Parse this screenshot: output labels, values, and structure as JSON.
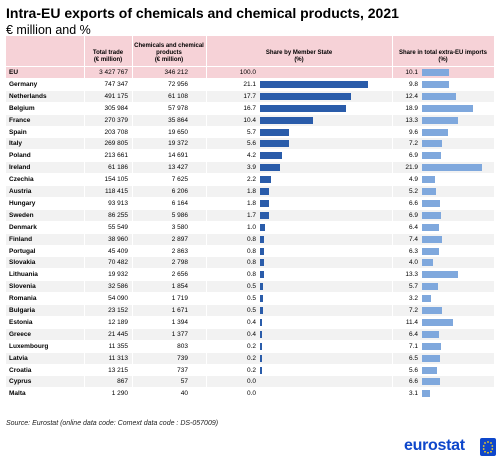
{
  "title": "Intra-EU exports of chemicals and chemical products, 2021",
  "subtitle": "€ million and %",
  "source": "Source: Eurostat (online data code: Comext data code : DS-057009)",
  "logo_text": "eurostat",
  "colors": {
    "header_bg": "#f6d2d7",
    "bar_dark": "#2a5caa",
    "bar_light": "#7fa8dd",
    "row_alt": "#f2f2f2",
    "logo_blue": "#0e47cb"
  },
  "chart_data": {
    "type": "table",
    "columns": [
      "Total trade\n(€ million)",
      "Chemicals and chemical\nproducts\n(€ million)",
      "Share by Member State\n(%)",
      "Share in total extra-EU imports\n(%)"
    ],
    "share_axis_max": 25,
    "rows": [
      {
        "name": "EU",
        "total": "3 427 767",
        "chem": "346 212",
        "share": 100.0,
        "share_label": "100.0",
        "extra": 10.1,
        "extra_label": "10.1"
      },
      {
        "name": "Germany",
        "total": "747 347",
        "chem": "72 956",
        "share": 21.1,
        "share_label": "21.1",
        "extra": 9.8,
        "extra_label": "9.8"
      },
      {
        "name": "Netherlands",
        "total": "491 175",
        "chem": "61 108",
        "share": 17.7,
        "share_label": "17.7",
        "extra": 12.4,
        "extra_label": "12.4"
      },
      {
        "name": "Belgium",
        "total": "305 984",
        "chem": "57 978",
        "share": 16.7,
        "share_label": "16.7",
        "extra": 18.9,
        "extra_label": "18.9"
      },
      {
        "name": "France",
        "total": "270 379",
        "chem": "35 864",
        "share": 10.4,
        "share_label": "10.4",
        "extra": 13.3,
        "extra_label": "13.3"
      },
      {
        "name": "Spain",
        "total": "203 708",
        "chem": "19 650",
        "share": 5.7,
        "share_label": "5.7",
        "extra": 9.6,
        "extra_label": "9.6"
      },
      {
        "name": "Italy",
        "total": "269 805",
        "chem": "19 372",
        "share": 5.6,
        "share_label": "5.6",
        "extra": 7.2,
        "extra_label": "7.2"
      },
      {
        "name": "Poland",
        "total": "213 661",
        "chem": "14 691",
        "share": 4.2,
        "share_label": "4.2",
        "extra": 6.9,
        "extra_label": "6.9"
      },
      {
        "name": "Ireland",
        "total": "61 186",
        "chem": "13 427",
        "share": 3.9,
        "share_label": "3.9",
        "extra": 21.9,
        "extra_label": "21.9"
      },
      {
        "name": "Czechia",
        "total": "154 105",
        "chem": "7 625",
        "share": 2.2,
        "share_label": "2.2",
        "extra": 4.9,
        "extra_label": "4.9"
      },
      {
        "name": "Austria",
        "total": "118 415",
        "chem": "6 206",
        "share": 1.8,
        "share_label": "1.8",
        "extra": 5.2,
        "extra_label": "5.2"
      },
      {
        "name": "Hungary",
        "total": "93 913",
        "chem": "6 164",
        "share": 1.8,
        "share_label": "1.8",
        "extra": 6.6,
        "extra_label": "6.6"
      },
      {
        "name": "Sweden",
        "total": "86 255",
        "chem": "5 986",
        "share": 1.7,
        "share_label": "1.7",
        "extra": 6.9,
        "extra_label": "6.9"
      },
      {
        "name": "Denmark",
        "total": "55 549",
        "chem": "3 580",
        "share": 1.0,
        "share_label": "1.0",
        "extra": 6.4,
        "extra_label": "6.4"
      },
      {
        "name": "Finland",
        "total": "38 960",
        "chem": "2 897",
        "share": 0.8,
        "share_label": "0.8",
        "extra": 7.4,
        "extra_label": "7.4"
      },
      {
        "name": "Portugal",
        "total": "45 409",
        "chem": "2 863",
        "share": 0.8,
        "share_label": "0.8",
        "extra": 6.3,
        "extra_label": "6.3"
      },
      {
        "name": "Slovakia",
        "total": "70 482",
        "chem": "2 798",
        "share": 0.8,
        "share_label": "0.8",
        "extra": 4.0,
        "extra_label": "4.0"
      },
      {
        "name": "Lithuania",
        "total": "19 932",
        "chem": "2 656",
        "share": 0.8,
        "share_label": "0.8",
        "extra": 13.3,
        "extra_label": "13.3"
      },
      {
        "name": "Slovenia",
        "total": "32 586",
        "chem": "1 854",
        "share": 0.5,
        "share_label": "0.5",
        "extra": 5.7,
        "extra_label": "5.7"
      },
      {
        "name": "Romania",
        "total": "54 090",
        "chem": "1 719",
        "share": 0.5,
        "share_label": "0.5",
        "extra": 3.2,
        "extra_label": "3.2"
      },
      {
        "name": "Bulgaria",
        "total": "23 152",
        "chem": "1 671",
        "share": 0.5,
        "share_label": "0.5",
        "extra": 7.2,
        "extra_label": "7.2"
      },
      {
        "name": "Estonia",
        "total": "12 189",
        "chem": "1 394",
        "share": 0.4,
        "share_label": "0.4",
        "extra": 11.4,
        "extra_label": "11.4"
      },
      {
        "name": "Greece",
        "total": "21 445",
        "chem": "1 377",
        "share": 0.4,
        "share_label": "0.4",
        "extra": 6.4,
        "extra_label": "6.4"
      },
      {
        "name": "Luxembourg",
        "total": "11 355",
        "chem": "803",
        "share": 0.2,
        "share_label": "0.2",
        "extra": 7.1,
        "extra_label": "7.1"
      },
      {
        "name": "Latvia",
        "total": "11 313",
        "chem": "739",
        "share": 0.2,
        "share_label": "0.2",
        "extra": 6.5,
        "extra_label": "6.5"
      },
      {
        "name": "Croatia",
        "total": "13 215",
        "chem": "737",
        "share": 0.2,
        "share_label": "0.2",
        "extra": 5.6,
        "extra_label": "5.6"
      },
      {
        "name": "Cyprus",
        "total": "867",
        "chem": "57",
        "share": 0.0,
        "share_label": "0.0",
        "extra": 6.6,
        "extra_label": "6.6"
      },
      {
        "name": "Malta",
        "total": "1 290",
        "chem": "40",
        "share": 0.0,
        "share_label": "0.0",
        "extra": 3.1,
        "extra_label": "3.1"
      }
    ]
  }
}
